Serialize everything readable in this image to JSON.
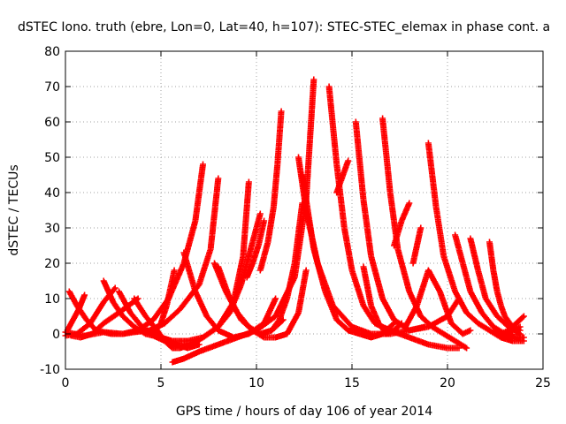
{
  "chart_data": {
    "type": "scatter",
    "title": "dSTEC Iono. truth (ebre, Lon=0, Lat=40, h=107): STEC-STEC_elemax in phase cont. a",
    "xlabel": "GPS time / hours of day 106 of year 2014",
    "ylabel": "dSTEC  / TECUs",
    "xlim": [
      0,
      25
    ],
    "ylim": [
      -10,
      80
    ],
    "xticks": [
      0,
      5,
      10,
      15,
      20,
      25
    ],
    "yticks": [
      -10,
      0,
      10,
      20,
      30,
      40,
      50,
      60,
      70,
      80
    ],
    "grid": true,
    "marker": "plus",
    "color": "#ff0000",
    "series": [
      {
        "x": [
          0.0,
          0.5,
          1.0,
          2.0,
          3.0,
          3.8,
          4.6,
          5.4,
          6.2,
          6.8,
          7.2
        ],
        "y": [
          0.5,
          0,
          -0.5,
          0.5,
          0,
          1,
          4,
          10,
          20,
          32,
          48
        ]
      },
      {
        "x": [
          0.0,
          0.6,
          1.3,
          2.0,
          2.6
        ],
        "y": [
          -0.5,
          0,
          3,
          9,
          13
        ]
      },
      {
        "x": [
          0.2,
          0.6,
          1.1,
          1.6,
          2.0,
          2.4,
          3.0,
          3.6,
          4.4,
          5.2,
          6.0,
          7.0,
          7.6,
          8.0
        ],
        "y": [
          12,
          8,
          4,
          1,
          0.5,
          0,
          0,
          0.5,
          1,
          3,
          7,
          14,
          24,
          44
        ]
      },
      {
        "x": [
          0.1,
          0.4,
          0.7,
          1.0
        ],
        "y": [
          1,
          4,
          7,
          11
        ]
      },
      {
        "x": [
          0.3,
          0.8,
          1.4,
          2.0,
          2.8,
          3.8
        ],
        "y": [
          -0.5,
          -1,
          0,
          3,
          6,
          10
        ]
      },
      {
        "x": [
          2.0,
          2.5,
          3.0,
          3.6,
          4.2,
          5.0,
          5.6,
          6.4,
          7.2,
          8.0,
          8.8,
          9.3,
          9.6
        ],
        "y": [
          15,
          9,
          5,
          2,
          0,
          -1,
          -2,
          -2,
          -1,
          2,
          9,
          22,
          43
        ]
      },
      {
        "x": [
          2.8,
          3.4,
          4.0,
          4.6,
          5.2,
          5.8,
          6.4,
          7.0
        ],
        "y": [
          12,
          6,
          2,
          -0.5,
          -2,
          -3,
          -4,
          -3
        ]
      },
      {
        "x": [
          3.6,
          4.2,
          4.8,
          5.2,
          5.6,
          6.0,
          6.6,
          7.2,
          8.0,
          8.6,
          9.2,
          9.8,
          10.2
        ],
        "y": [
          10,
          5,
          1,
          -2,
          -4,
          -4,
          -3,
          -1,
          2,
          6,
          14,
          26,
          34
        ]
      },
      {
        "x": [
          4.6,
          5.0,
          5.3,
          5.5,
          5.7
        ],
        "y": [
          0,
          3,
          8,
          13,
          18
        ]
      },
      {
        "x": [
          5.6,
          6.2,
          7.0,
          8.0,
          9.0,
          10.0,
          11.0,
          12.0,
          12.6,
          13.0
        ],
        "y": [
          -8,
          -7,
          -5,
          -3,
          -1,
          1,
          5,
          16,
          38,
          72
        ]
      },
      {
        "x": [
          6.2,
          6.8,
          7.4,
          8.0,
          8.8,
          9.6,
          10.4,
          11.0
        ],
        "y": [
          23,
          12,
          5,
          1,
          -1,
          0,
          3,
          10
        ]
      },
      {
        "x": [
          7.8,
          8.4,
          9.0,
          9.6,
          10.2,
          10.8,
          11.4
        ],
        "y": [
          20,
          12,
          6,
          2,
          0,
          1,
          4
        ]
      },
      {
        "x": [
          8.0,
          8.6,
          9.2,
          9.8,
          10.4,
          11.0,
          11.6,
          12.2,
          12.6
        ],
        "y": [
          19,
          10,
          4,
          1,
          -1,
          -1,
          0,
          6,
          18
        ]
      },
      {
        "x": [
          9.5,
          9.8,
          10.1,
          10.4
        ],
        "y": [
          16,
          20,
          25,
          32
        ]
      },
      {
        "x": [
          10.2,
          10.6,
          10.9,
          11.1,
          11.3
        ],
        "y": [
          18,
          26,
          36,
          48,
          63
        ]
      },
      {
        "x": [
          10.8,
          11.2,
          11.6,
          12.0,
          12.4
        ],
        "y": [
          1,
          4,
          10,
          20,
          37
        ]
      },
      {
        "x": [
          12.2,
          12.6,
          13.2,
          14.0,
          15.0,
          16.0,
          17.0,
          18.0,
          18.8
        ],
        "y": [
          50,
          35,
          20,
          8,
          2,
          0,
          0,
          1,
          2
        ]
      },
      {
        "x": [
          12.4,
          13.0,
          13.6,
          14.2,
          14.8,
          15.4,
          16.0,
          16.6,
          17.2
        ],
        "y": [
          45,
          24,
          12,
          4,
          1,
          0,
          -1,
          0,
          3
        ]
      },
      {
        "x": [
          13.8,
          14.2,
          14.6,
          15.0,
          15.6,
          16.2,
          17.0,
          18.0,
          19.0,
          20.0,
          20.6
        ],
        "y": [
          70,
          48,
          30,
          18,
          8,
          3,
          1,
          -1,
          -3,
          -4,
          -4
        ]
      },
      {
        "x": [
          14.2,
          14.4,
          14.6,
          14.8
        ],
        "y": [
          40,
          43,
          46,
          49
        ]
      },
      {
        "x": [
          15.2,
          15.6,
          16.0,
          16.6,
          17.2,
          18.0,
          19.0,
          20.0,
          20.6
        ],
        "y": [
          60,
          38,
          22,
          10,
          4,
          1,
          2,
          5,
          10
        ]
      },
      {
        "x": [
          15.6,
          16.0,
          16.4,
          16.8,
          17.2,
          17.6
        ],
        "y": [
          19,
          8,
          3,
          0,
          1,
          3
        ]
      },
      {
        "x": [
          16.6,
          17.0,
          17.4,
          18.0,
          18.6,
          19.2,
          19.8,
          20.4,
          21.0
        ],
        "y": [
          61,
          40,
          24,
          12,
          5,
          2,
          0,
          -2,
          -4
        ]
      },
      {
        "x": [
          17.2,
          17.6,
          18.0
        ],
        "y": [
          25,
          32,
          37
        ]
      },
      {
        "x": [
          17.8,
          18.4,
          19.0,
          19.6,
          20.2,
          20.8,
          21.2
        ],
        "y": [
          2,
          8,
          18,
          12,
          3,
          0,
          1
        ]
      },
      {
        "x": [
          18.2,
          18.6
        ],
        "y": [
          20,
          30
        ]
      },
      {
        "x": [
          19.0,
          19.4,
          19.8,
          20.4,
          21.0,
          21.6,
          22.2,
          22.8,
          23.4,
          24.0
        ],
        "y": [
          54,
          36,
          22,
          12,
          6,
          3,
          1,
          -1,
          -2,
          -2
        ]
      },
      {
        "x": [
          20.4,
          20.8,
          21.2,
          21.8,
          22.4,
          23.0,
          23.6,
          24.0
        ],
        "y": [
          28,
          20,
          12,
          6,
          2,
          0,
          -1,
          -1
        ]
      },
      {
        "x": [
          21.2,
          21.6,
          22.0,
          22.6,
          23.2,
          23.8
        ],
        "y": [
          27,
          18,
          10,
          5,
          2,
          0
        ]
      },
      {
        "x": [
          22.2,
          22.4,
          22.6,
          22.8,
          23.0,
          23.4,
          23.8
        ],
        "y": [
          26,
          18,
          12,
          8,
          5,
          2,
          1
        ]
      },
      {
        "x": [
          22.8,
          23.2,
          23.6,
          24.0
        ],
        "y": [
          0,
          1,
          3,
          5
        ]
      },
      {
        "x": [
          23.0,
          23.4,
          23.8
        ],
        "y": [
          -1,
          1,
          2
        ]
      }
    ]
  }
}
